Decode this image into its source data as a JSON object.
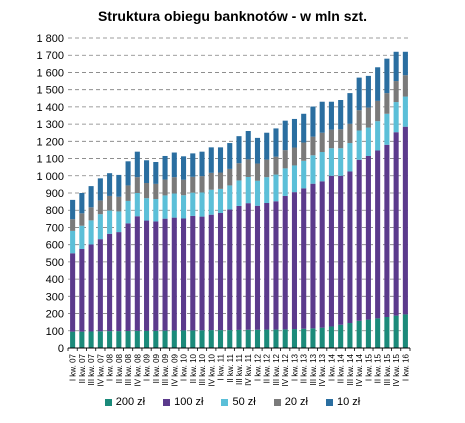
{
  "chart_data": {
    "type": "bar",
    "stacked": true,
    "title": "Struktura obiegu banknotów - w mln szt.",
    "xlabel": "",
    "ylabel": "",
    "ylim": [
      0,
      1800
    ],
    "yticks": [
      0,
      100,
      200,
      300,
      400,
      500,
      600,
      700,
      800,
      900,
      1000,
      1100,
      1200,
      1300,
      1400,
      1500,
      1600,
      1700,
      1800
    ],
    "ytick_labels": [
      "0",
      "100",
      "200",
      "300",
      "400",
      "500",
      "600",
      "700",
      "800",
      "900",
      "1 000",
      "1 100",
      "1 200",
      "1 300",
      "1 400",
      "1 500",
      "1 600",
      "1 700",
      "1 800"
    ],
    "grid": "horizontal dashed",
    "legend_position": "bottom",
    "categories": [
      "I kw. 07",
      "II kw. 07",
      "III kw. 07",
      "IV kw. 07",
      "I kw. 08",
      "II kw. 08",
      "III kw. 08",
      "IV kw. 08",
      "I kw. 09",
      "II kw. 09",
      "III kw. 09",
      "IV kw. 09",
      "I kw. 10",
      "II kw. 10",
      "III kw. 10",
      "IV kw. 10",
      "I kw. 11",
      "II kw. 11",
      "III kw. 11",
      "IV kw. 11",
      "I kw. 12",
      "II kw. 12",
      "III kw. 12",
      "IV kw. 12",
      "I kw. 13",
      "II kw. 13",
      "III kw. 13",
      "IV kw. 13",
      "I kw. 14",
      "II kw. 14",
      "III kw. 14",
      "IV kw. 14",
      "I kw. 15",
      "II kw. 15",
      "III kw. 15",
      "IV kw. 15",
      "I kw. 16"
    ],
    "series": [
      {
        "name": "200 zł",
        "color": "#1b8a7a",
        "values": [
          95,
          95,
          96,
          97,
          98,
          98,
          99,
          100,
          100,
          100,
          101,
          102,
          102,
          102,
          103,
          104,
          104,
          104,
          105,
          106,
          106,
          107,
          107,
          108,
          110,
          112,
          114,
          118,
          125,
          135,
          145,
          158,
          165,
          172,
          180,
          188,
          195
        ]
      },
      {
        "name": "100 zł",
        "color": "#5b3a8c",
        "values": [
          455,
          480,
          505,
          535,
          565,
          575,
          625,
          665,
          640,
          635,
          650,
          655,
          650,
          665,
          660,
          670,
          680,
          700,
          720,
          735,
          720,
          735,
          745,
          775,
          795,
          815,
          840,
          850,
          875,
          865,
          880,
          935,
          950,
          975,
          1000,
          1065,
          1090
        ]
      },
      {
        "name": "50 zł",
        "color": "#5bbfd8",
        "values": [
          130,
          135,
          140,
          145,
          135,
          120,
          130,
          135,
          130,
          130,
          135,
          140,
          135,
          135,
          140,
          145,
          140,
          140,
          148,
          152,
          145,
          150,
          155,
          160,
          155,
          160,
          165,
          170,
          160,
          160,
          165,
          170,
          165,
          170,
          180,
          175,
          175
        ]
      },
      {
        "name": "20 zł",
        "color": "#7a7a7a",
        "values": [
          68,
          72,
          76,
          80,
          85,
          85,
          90,
          92,
          88,
          88,
          92,
          95,
          90,
          92,
          95,
          98,
          95,
          96,
          100,
          102,
          100,
          102,
          104,
          106,
          104,
          106,
          108,
          112,
          108,
          110,
          112,
          118,
          116,
          118,
          120,
          122,
          124
        ]
      },
      {
        "name": "10 zł",
        "color": "#2a6ea0",
        "values": [
          112,
          118,
          123,
          128,
          132,
          127,
          140,
          148,
          132,
          127,
          137,
          143,
          136,
          136,
          142,
          148,
          146,
          150,
          157,
          165,
          149,
          156,
          164,
          171,
          166,
          167,
          175,
          180,
          162,
          170,
          178,
          189,
          184,
          195,
          200,
          170,
          136
        ]
      }
    ]
  }
}
